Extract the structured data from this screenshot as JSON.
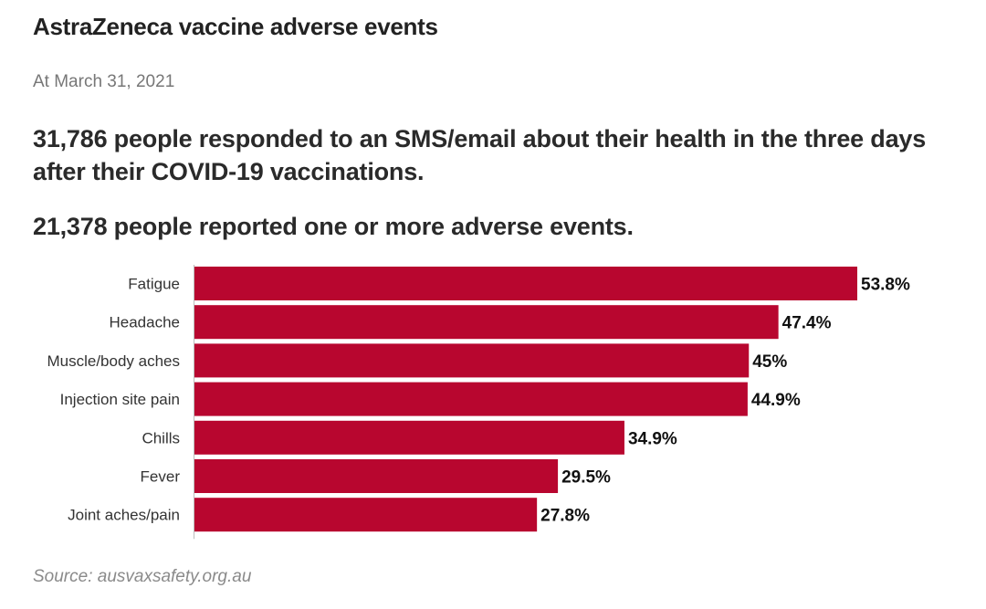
{
  "title": "AstraZeneca vaccine adverse events",
  "subtitle": "At March 31, 2021",
  "headline_1": "31,786 people responded to an SMS/email about their health in the three days after their COVID-19 vaccinations.",
  "headline_2": "21,378 people reported one or more adverse events.",
  "source": "Source: ausvaxsafety.org.au",
  "colors": {
    "bar": "#b8062f",
    "value_label": "#111111",
    "category_label": "#333333",
    "axis": "#bbbbbb"
  },
  "chart_data": {
    "type": "bar",
    "orientation": "horizontal",
    "categories": [
      "Fatigue",
      "Headache",
      "Muscle/body aches",
      "Injection site pain",
      "Chills",
      "Fever",
      "Joint aches/pain"
    ],
    "values": [
      53.8,
      47.4,
      45,
      44.9,
      34.9,
      29.5,
      27.8
    ],
    "value_labels": [
      "53.8%",
      "47.4%",
      "45%",
      "44.9%",
      "34.9%",
      "29.5%",
      "27.8%"
    ],
    "unit": "%",
    "xlim": [
      0,
      53.8
    ],
    "grid": false,
    "legend": "none"
  }
}
